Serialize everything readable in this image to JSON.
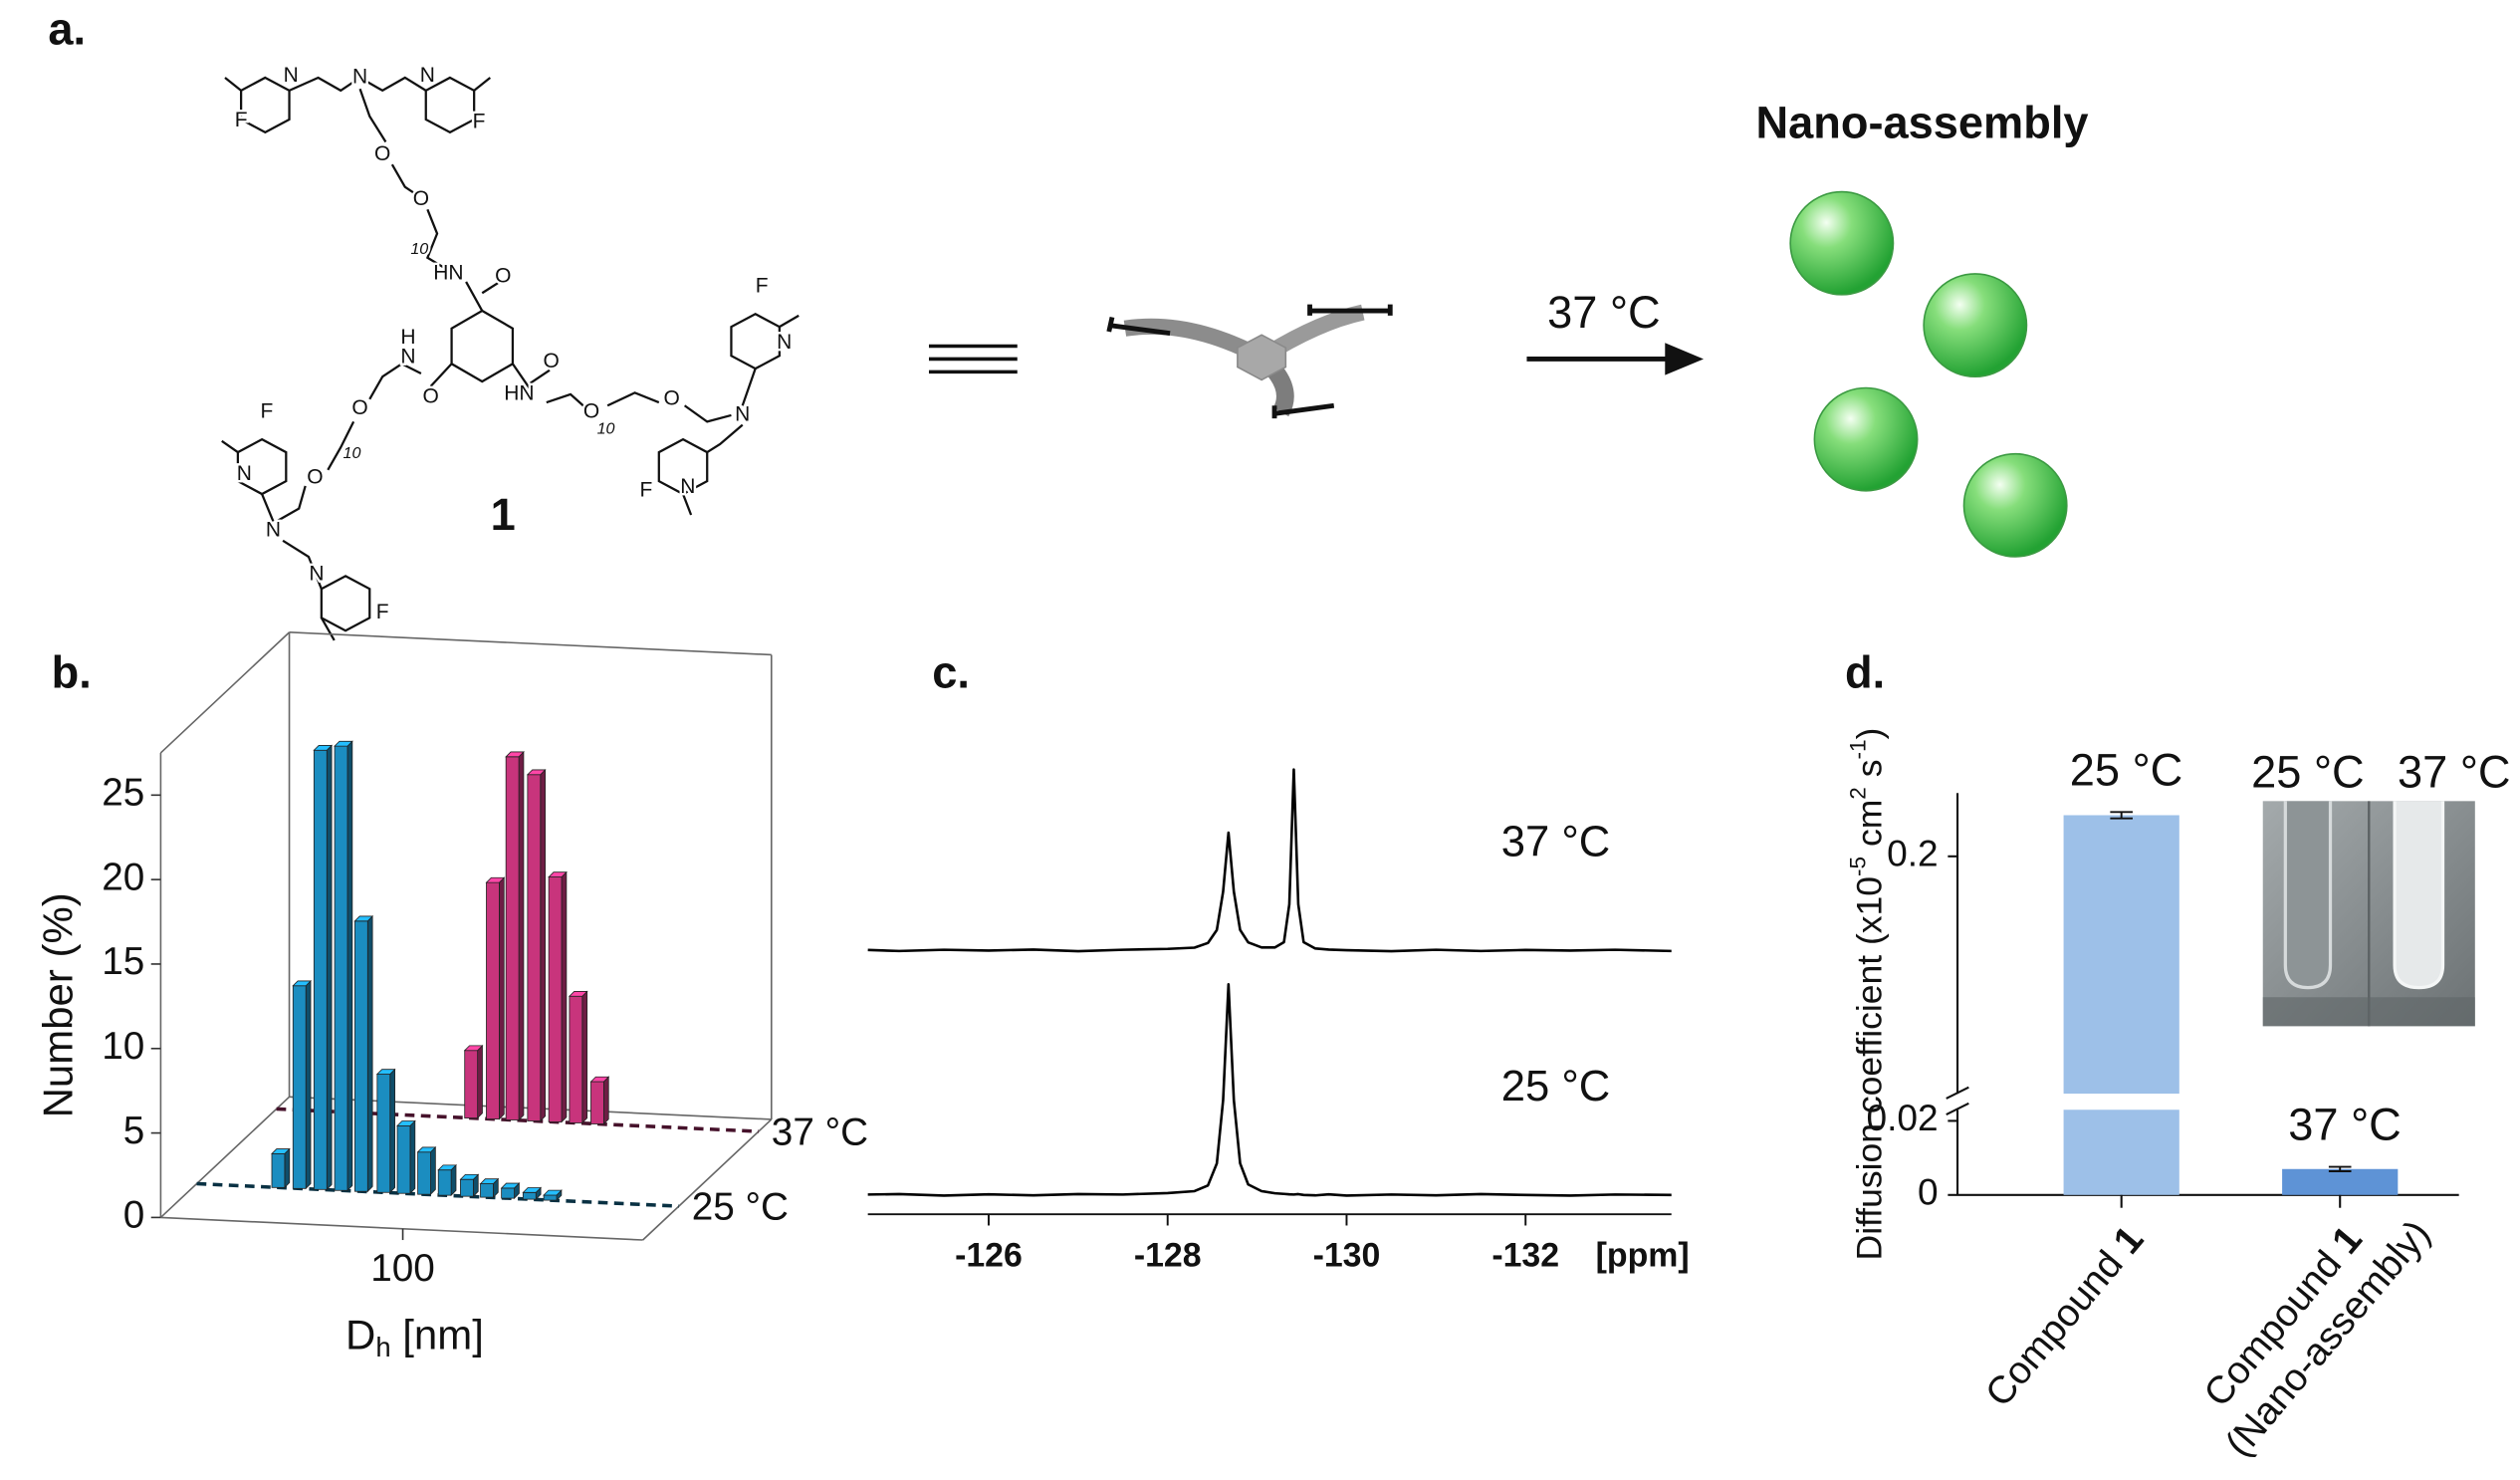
{
  "panels": {
    "a": "a.",
    "b": "b.",
    "c": "c.",
    "d": "d."
  },
  "scheme": {
    "compound_number": "1",
    "atom_labels": [
      "N",
      "N",
      "N",
      "F",
      "F",
      "O",
      "O",
      "10",
      "HN",
      "O",
      "H",
      "N",
      "O",
      "O",
      "HN",
      "O",
      "10",
      "O",
      "F",
      "N",
      "N",
      "N",
      "F",
      "O",
      "10",
      "O",
      "N",
      "F",
      "N",
      "N",
      "F"
    ],
    "product": "Nano-assembly",
    "condition": "37 °C"
  },
  "chart_data": [
    {
      "type": "bar3d",
      "y_label": "Number (%)",
      "x_label": [
        "D",
        "h",
        " [nm]"
      ],
      "xscale": "log",
      "xlim": [
        30,
        330
      ],
      "xticks": [
        100
      ],
      "ylim": [
        0,
        27.5
      ],
      "yticks": [
        0,
        5,
        10,
        15,
        20,
        25
      ],
      "series": [
        {
          "name": "25 °C",
          "color": "#1b8dc0",
          "x": [
            45,
            50,
            55.5,
            61.5,
            68,
            76,
            84,
            93,
            103,
            115,
            127,
            141,
            157,
            174
          ],
          "values": [
            2,
            12,
            26,
            26.3,
            16,
            7,
            4,
            2.5,
            1.5,
            1,
            0.8,
            0.6,
            0.4,
            0.3
          ]
        },
        {
          "name": "37 °C",
          "color": "#c8347c",
          "x": [
            79,
            88,
            97,
            108,
            120,
            133,
            148
          ],
          "values": [
            4,
            14,
            21.5,
            20.5,
            14.5,
            7.5,
            2.5
          ]
        }
      ]
    },
    {
      "type": "line",
      "x_label": "[ppm]",
      "x": [
        -124.65,
        -125,
        -125.5,
        -126,
        -126.5,
        -127,
        -127.5,
        -128,
        -128.3,
        -128.45,
        -128.55,
        -128.62,
        -128.68,
        -128.74,
        -128.81,
        -128.9,
        -129.05,
        -129.2,
        -129.3,
        -129.36,
        -129.41,
        -129.46,
        -129.52,
        -129.65,
        -129.8,
        -130,
        -130.5,
        -131,
        -131.5,
        -132,
        -132.5,
        -133,
        -133.63
      ],
      "xlim": [
        -124.65,
        -133.63
      ],
      "xticks": [
        -126,
        -128,
        -130,
        -132
      ],
      "series": [
        {
          "name": "37 °C",
          "color": "#000000",
          "values": [
            0.3,
            -0.2,
            0.4,
            0,
            0.5,
            -0.3,
            0.4,
            0.8,
            1.4,
            3.6,
            9.8,
            28,
            56,
            28,
            9.8,
            3.9,
            1.5,
            1.5,
            4,
            22,
            86,
            22,
            4,
            1,
            0.5,
            0.2,
            -0.3,
            0.4,
            -0.2,
            0.3,
            0,
            0.4,
            -0.2
          ]
        },
        {
          "name": "25 °C",
          "color": "#000000",
          "values": [
            0.2,
            0.4,
            -0.3,
            0.3,
            -0.2,
            0.4,
            0.2,
            0.9,
            1.8,
            4.5,
            15,
            45,
            100,
            45,
            15,
            5,
            1.8,
            0.8,
            0.5,
            0.3,
            0.2,
            0.4,
            0,
            -0.2,
            0.3,
            -0.3,
            0.2,
            -0.2,
            0.4,
            0,
            -0.3,
            0.2,
            0
          ]
        }
      ]
    },
    {
      "type": "bar_broken",
      "y_label": [
        "Diffusion coefficient (x10",
        "-5",
        " cm",
        "2",
        " s",
        "-1",
        ")"
      ],
      "categories": [
        [
          "Compound ",
          "1"
        ],
        [
          "Compound ",
          "1",
          "(Nano-assembly)"
        ]
      ],
      "values": [
        0.226,
        0.007
      ],
      "errors": [
        0.002,
        0.0006
      ],
      "value_annotations": [
        "25 °C",
        "37 °C"
      ],
      "colors": [
        "#9dc0e8",
        "#5e93d6"
      ],
      "ylim_lower": [
        0,
        0.023
      ],
      "yticks_lower": [
        0,
        0.02
      ],
      "ylim_upper": [
        0.05,
        0.24
      ],
      "yticks_upper": [
        0.2
      ],
      "photo_labels": [
        "25 °C",
        "37 °C"
      ]
    }
  ]
}
